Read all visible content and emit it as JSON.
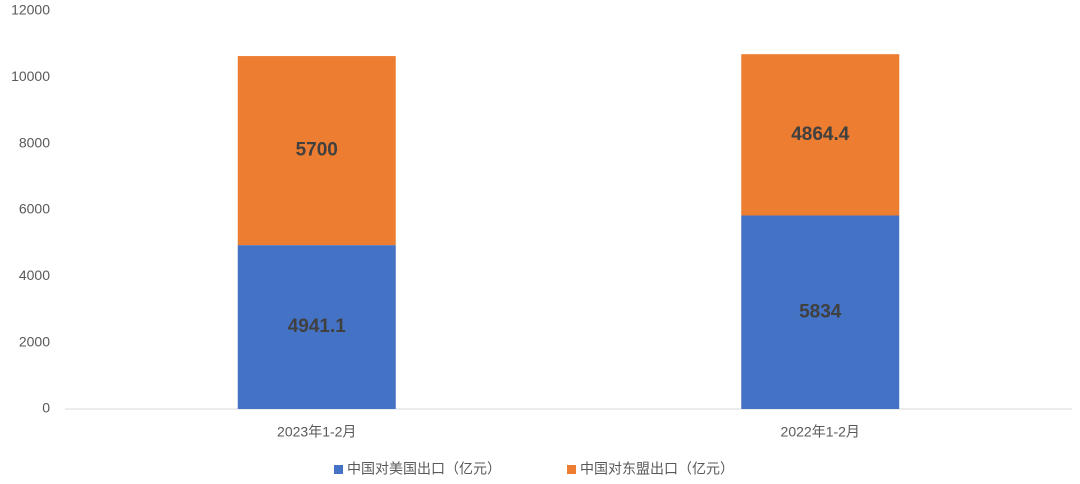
{
  "chart_data": {
    "type": "stacked_bar",
    "categories": [
      "2023年1-2月",
      "2022年1-2月"
    ],
    "series": [
      {
        "name": "中国对美国出口（亿元）",
        "color": "#4472c4",
        "values": [
          4941.1,
          5834
        ]
      },
      {
        "name": "中国对东盟出口（亿元）",
        "color": "#ed7d31",
        "values": [
          5700,
          4864.4
        ]
      }
    ],
    "ylim": [
      0,
      12000
    ],
    "yticks": [
      0,
      2000,
      4000,
      6000,
      8000,
      10000,
      12000
    ],
    "grid": false,
    "legend": "bottom"
  }
}
